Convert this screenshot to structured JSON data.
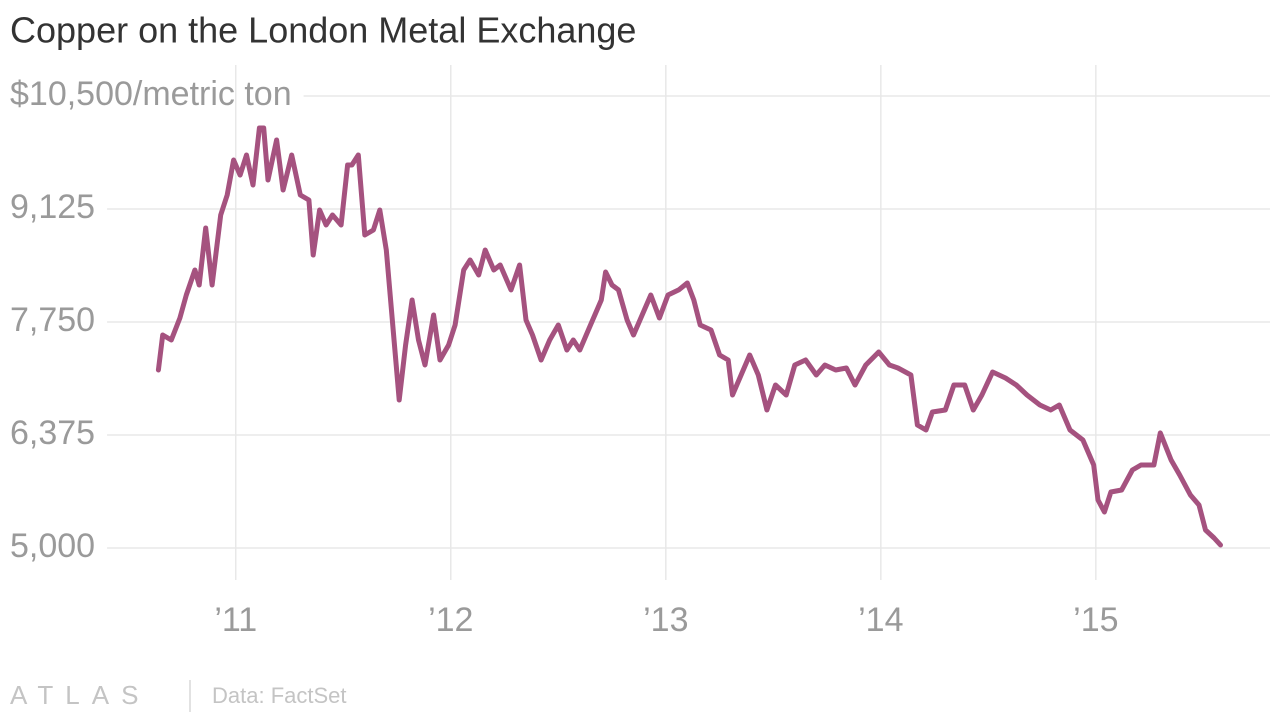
{
  "chart_data": {
    "type": "line",
    "title": "Copper on the London Metal Exchange",
    "x": [
      2010.64,
      2010.66,
      2010.7,
      2010.74,
      2010.77,
      2010.81,
      2010.83,
      2010.86,
      2010.89,
      2010.93,
      2010.96,
      2010.99,
      2011.02,
      2011.05,
      2011.08,
      2011.11,
      2011.13,
      2011.15,
      2011.19,
      2011.22,
      2011.26,
      2011.3,
      2011.34,
      2011.36,
      2011.39,
      2011.42,
      2011.45,
      2011.49,
      2011.52,
      2011.54,
      2011.57,
      2011.6,
      2011.64,
      2011.67,
      2011.7,
      2011.74,
      2011.76,
      2011.79,
      2011.82,
      2011.85,
      2011.88,
      2011.92,
      2011.95,
      2011.99,
      2012.02,
      2012.06,
      2012.09,
      2012.13,
      2012.16,
      2012.2,
      2012.23,
      2012.28,
      2012.32,
      2012.35,
      2012.38,
      2012.42,
      2012.46,
      2012.5,
      2012.54,
      2012.57,
      2012.6,
      2012.65,
      2012.7,
      2012.72,
      2012.75,
      2012.78,
      2012.82,
      2012.85,
      2012.9,
      2012.93,
      2012.97,
      2013.01,
      2013.06,
      2013.1,
      2013.13,
      2013.16,
      2013.21,
      2013.25,
      2013.29,
      2013.31,
      2013.35,
      2013.39,
      2013.43,
      2013.47,
      2013.51,
      2013.56,
      2013.6,
      2013.65,
      2013.7,
      2013.74,
      2013.79,
      2013.84,
      2013.88,
      2013.93,
      2013.99,
      2014.04,
      2014.08,
      2014.14,
      2014.17,
      2014.21,
      2014.24,
      2014.3,
      2014.34,
      2014.39,
      2014.43,
      2014.47,
      2014.52,
      2014.58,
      2014.63,
      2014.68,
      2014.74,
      2014.79,
      2014.83,
      2014.88,
      2014.94,
      2014.99,
      2015.01,
      2015.04,
      2015.07,
      2015.12,
      2015.17,
      2015.21,
      2015.27,
      2015.3,
      2015.35,
      2015.39,
      2015.44,
      2015.48,
      2015.51,
      2015.55,
      2015.58
    ],
    "series": [
      {
        "name": "Copper",
        "color": "#a5527f",
        "values": [
          7166,
          7592,
          7531,
          7799,
          8079,
          8383,
          8200,
          8894,
          8200,
          9052,
          9295,
          9721,
          9538,
          9782,
          9417,
          10111,
          10111,
          9478,
          9965,
          9356,
          9782,
          9295,
          9234,
          8565,
          9113,
          8930,
          9052,
          8930,
          9660,
          9660,
          9782,
          8809,
          8870,
          9113,
          8626,
          7409,
          6801,
          7470,
          8018,
          7531,
          7227,
          7835,
          7288,
          7470,
          7714,
          8383,
          8505,
          8322,
          8626,
          8383,
          8444,
          8140,
          8444,
          7774,
          7592,
          7288,
          7531,
          7714,
          7409,
          7531,
          7409,
          7714,
          8018,
          8358,
          8200,
          8140,
          7774,
          7592,
          7896,
          8079,
          7799,
          8079,
          8140,
          8225,
          8018,
          7714,
          7653,
          7349,
          7288,
          6862,
          7105,
          7349,
          7105,
          6679,
          6984,
          6862,
          7227,
          7288,
          7105,
          7227,
          7166,
          7190,
          6984,
          7227,
          7385,
          7227,
          7190,
          7105,
          6497,
          6436,
          6655,
          6679,
          6984,
          6984,
          6679,
          6862,
          7142,
          7069,
          6984,
          6862,
          6740,
          6679,
          6740,
          6436,
          6314,
          6010,
          5584,
          5438,
          5681,
          5706,
          5949,
          6010,
          6010,
          6400,
          6071,
          5888,
          5645,
          5523,
          5219,
          5122,
          5036
        ]
      }
    ],
    "xlim": [
      2009.95,
      2015.81
    ],
    "xticks": [
      {
        "value": 2011,
        "label": "’11"
      },
      {
        "value": 2012,
        "label": "’12"
      },
      {
        "value": 2013,
        "label": "’13"
      },
      {
        "value": 2014,
        "label": "’14"
      },
      {
        "value": 2015,
        "label": "’15"
      }
    ],
    "ylim": [
      5000,
      10500
    ],
    "yticks": [
      {
        "value": 5000,
        "label": "5,000"
      },
      {
        "value": 6375,
        "label": "6,375"
      },
      {
        "value": 7750,
        "label": "7,750"
      },
      {
        "value": 9125,
        "label": "9,125"
      },
      {
        "value": 10500,
        "label": "$10,500/metric ton"
      }
    ],
    "grid": true
  },
  "footer": {
    "logo": "ATLAS",
    "source": "Data: FactSet"
  }
}
